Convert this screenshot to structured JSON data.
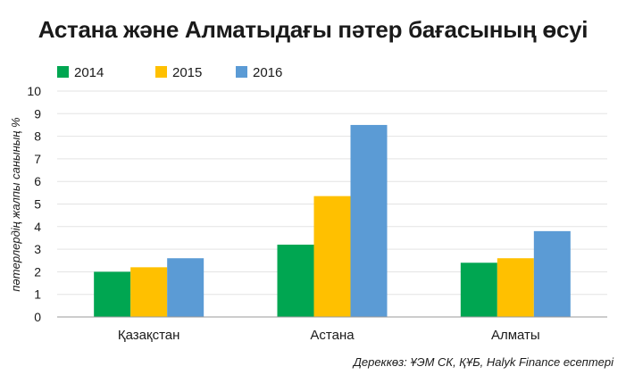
{
  "chart_data": {
    "type": "bar",
    "title": "Астана және Алматыдағы пәтер бағасының өсуі",
    "ylabel": "пәтерлердің жалпы санының %",
    "xlabel": "",
    "categories": [
      "Қазақстан",
      "Астана",
      "Алматы"
    ],
    "series": [
      {
        "name": "2014",
        "color": "#00a651",
        "values": [
          2.0,
          3.2,
          2.4
        ]
      },
      {
        "name": "2015",
        "color": "#ffc000",
        "values": [
          2.2,
          5.35,
          2.6
        ]
      },
      {
        "name": "2016",
        "color": "#5b9bd5",
        "values": [
          2.6,
          8.5,
          3.8
        ]
      }
    ],
    "ylim": [
      0,
      10
    ],
    "yticks": [
      0,
      1,
      2,
      3,
      4,
      5,
      6,
      7,
      8,
      9,
      10
    ],
    "grid": true,
    "legend": "top-left",
    "source": "Дереккөз: ҰЭМ СК, ҚҰБ, Halyk Finance есептері"
  }
}
